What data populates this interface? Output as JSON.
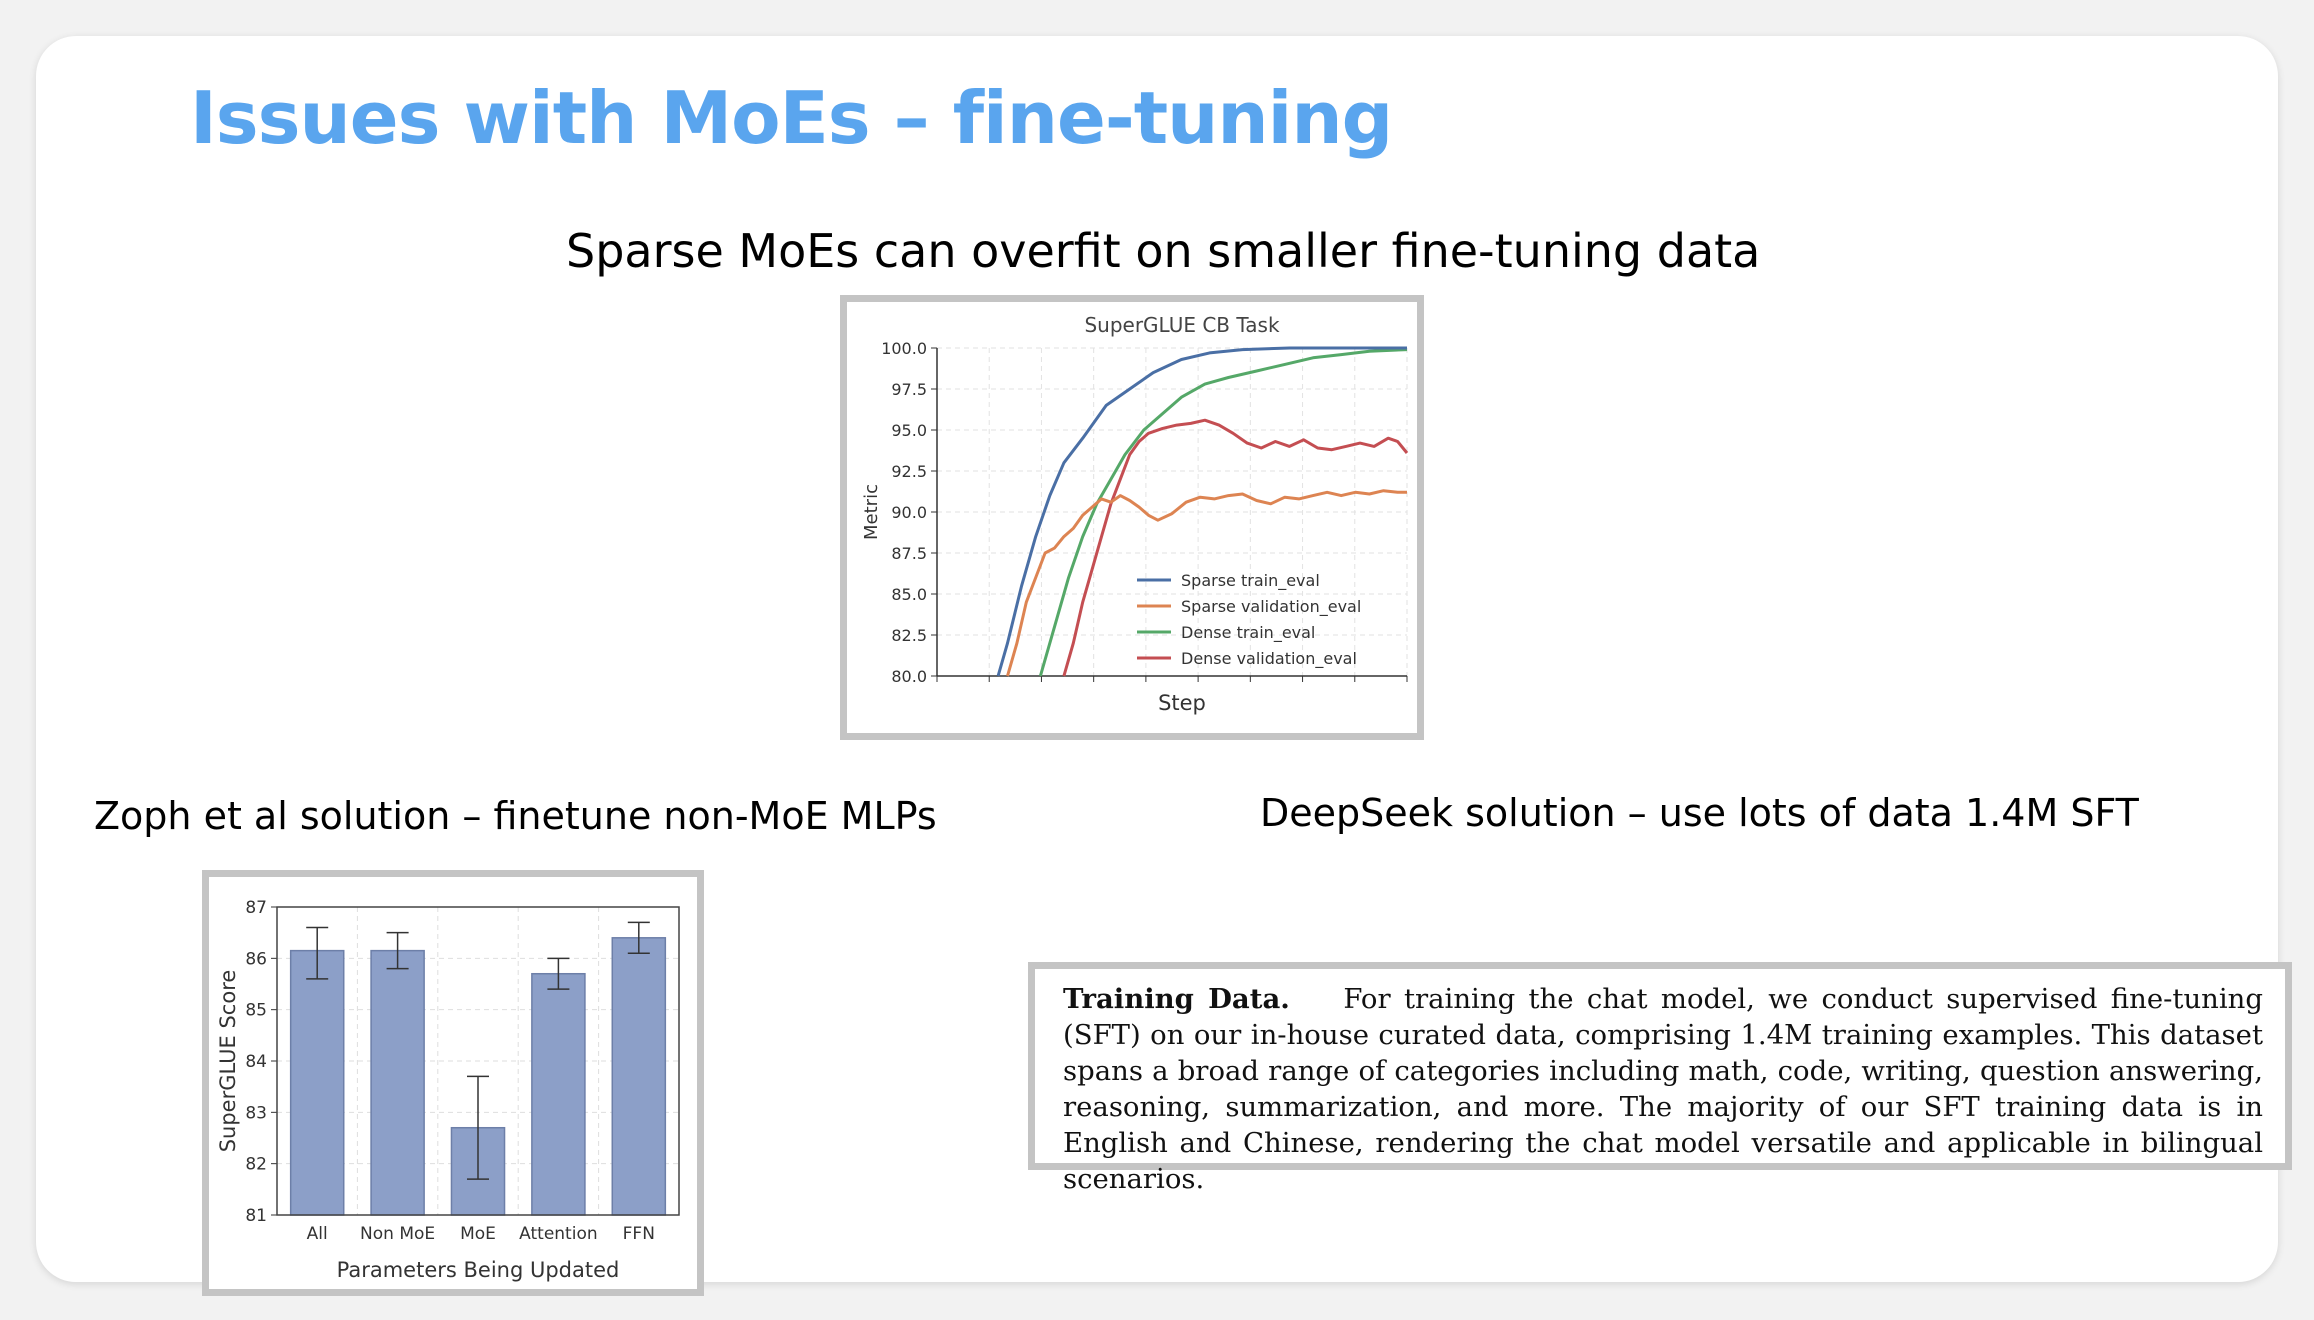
{
  "slide": {
    "title": "Issues with MoEs – fine-tuning",
    "subtitle_top": "Sparse MoEs can overfit on smaller fine-tuning data",
    "subtitle_left": "Zoph et al solution – finetune non-MoE MLPs",
    "subtitle_right": "DeepSeek solution – use lots of data 1.4M SFT"
  },
  "excerpt": {
    "heading": "Training Data.",
    "body": "For training the chat model, we conduct supervised fine-tuning (SFT) on our in-house curated data, comprising 1.4M training examples. This dataset spans a broad range of categories including math, code, writing, question answering, reasoning, summarization, and more. The majority of our SFT training data is in English and Chinese, rendering the chat model versatile and applicable in bilingual scenarios."
  },
  "chart_data": [
    {
      "type": "line",
      "title": "SuperGLUE CB Task",
      "xlabel": "Step",
      "ylabel": "Metric",
      "ylim": [
        80.0,
        100.0
      ],
      "xlim": [
        0,
        100
      ],
      "yticks": [
        "80.0",
        "82.5",
        "85.0",
        "87.5",
        "90.0",
        "92.5",
        "95.0",
        "97.5",
        "100.0"
      ],
      "grid": true,
      "legend": "lower-right",
      "series": [
        {
          "name": "Sparse train_eval",
          "color": "#4a6fa5",
          "x": [
            13,
            15,
            18,
            21,
            24,
            27,
            31,
            36,
            41,
            46,
            52,
            58,
            65,
            75,
            85,
            100
          ],
          "y": [
            80.0,
            82.0,
            85.5,
            88.5,
            91.0,
            93.0,
            94.5,
            96.5,
            97.5,
            98.5,
            99.3,
            99.7,
            99.9,
            100.0,
            100.0,
            100.0
          ]
        },
        {
          "name": "Sparse validation_eval",
          "color": "#dd8452",
          "x": [
            15,
            17,
            19,
            21,
            23,
            25,
            27,
            29,
            31,
            33,
            35,
            37,
            39,
            41,
            43,
            45,
            47,
            50,
            53,
            56,
            59,
            62,
            65,
            68,
            71,
            74,
            77,
            80,
            83,
            86,
            89,
            92,
            95,
            98,
            100
          ],
          "y": [
            80.0,
            82.0,
            84.5,
            86.0,
            87.5,
            87.8,
            88.5,
            89.0,
            89.8,
            90.3,
            90.8,
            90.6,
            91.0,
            90.7,
            90.3,
            89.8,
            89.5,
            89.9,
            90.6,
            90.9,
            90.8,
            91.0,
            91.1,
            90.7,
            90.5,
            90.9,
            90.8,
            91.0,
            91.2,
            91.0,
            91.2,
            91.1,
            91.3,
            91.2,
            91.2
          ]
        },
        {
          "name": "Dense train_eval",
          "color": "#55a868",
          "x": [
            22,
            25,
            28,
            31,
            34,
            37,
            40,
            44,
            48,
            52,
            57,
            62,
            68,
            74,
            80,
            86,
            92,
            100
          ],
          "y": [
            80.0,
            83.0,
            86.0,
            88.5,
            90.5,
            92.0,
            93.5,
            95.0,
            96.0,
            97.0,
            97.8,
            98.2,
            98.6,
            99.0,
            99.4,
            99.6,
            99.8,
            99.9
          ]
        },
        {
          "name": "Dense validation_eval",
          "color": "#c44e52",
          "x": [
            27,
            29,
            31,
            33,
            35,
            37,
            39,
            41,
            43,
            45,
            48,
            51,
            54,
            57,
            60,
            63,
            66,
            69,
            72,
            75,
            78,
            81,
            84,
            87,
            90,
            93,
            96,
            98,
            100
          ],
          "y": [
            80.0,
            82.0,
            84.5,
            86.5,
            88.5,
            90.5,
            92.0,
            93.5,
            94.3,
            94.8,
            95.1,
            95.3,
            95.4,
            95.6,
            95.3,
            94.8,
            94.2,
            93.9,
            94.3,
            94.0,
            94.4,
            93.9,
            93.8,
            94.0,
            94.2,
            94.0,
            94.5,
            94.3,
            93.6
          ]
        }
      ]
    },
    {
      "type": "bar",
      "title": "",
      "xlabel": "Parameters Being Updated",
      "ylabel": "SuperGLUE Score",
      "ylim": [
        81,
        87
      ],
      "yticks": [
        "81",
        "82",
        "83",
        "84",
        "85",
        "86",
        "87"
      ],
      "grid": true,
      "color": "#8c9fc8",
      "categories": [
        "All",
        "Non MoE",
        "MoE",
        "Attention",
        "FFN"
      ],
      "values": [
        86.15,
        86.15,
        82.7,
        85.7,
        86.4
      ],
      "error_low": [
        85.6,
        85.8,
        81.7,
        85.4,
        86.1
      ],
      "error_high": [
        86.6,
        86.5,
        83.7,
        86.0,
        86.7
      ]
    }
  ]
}
